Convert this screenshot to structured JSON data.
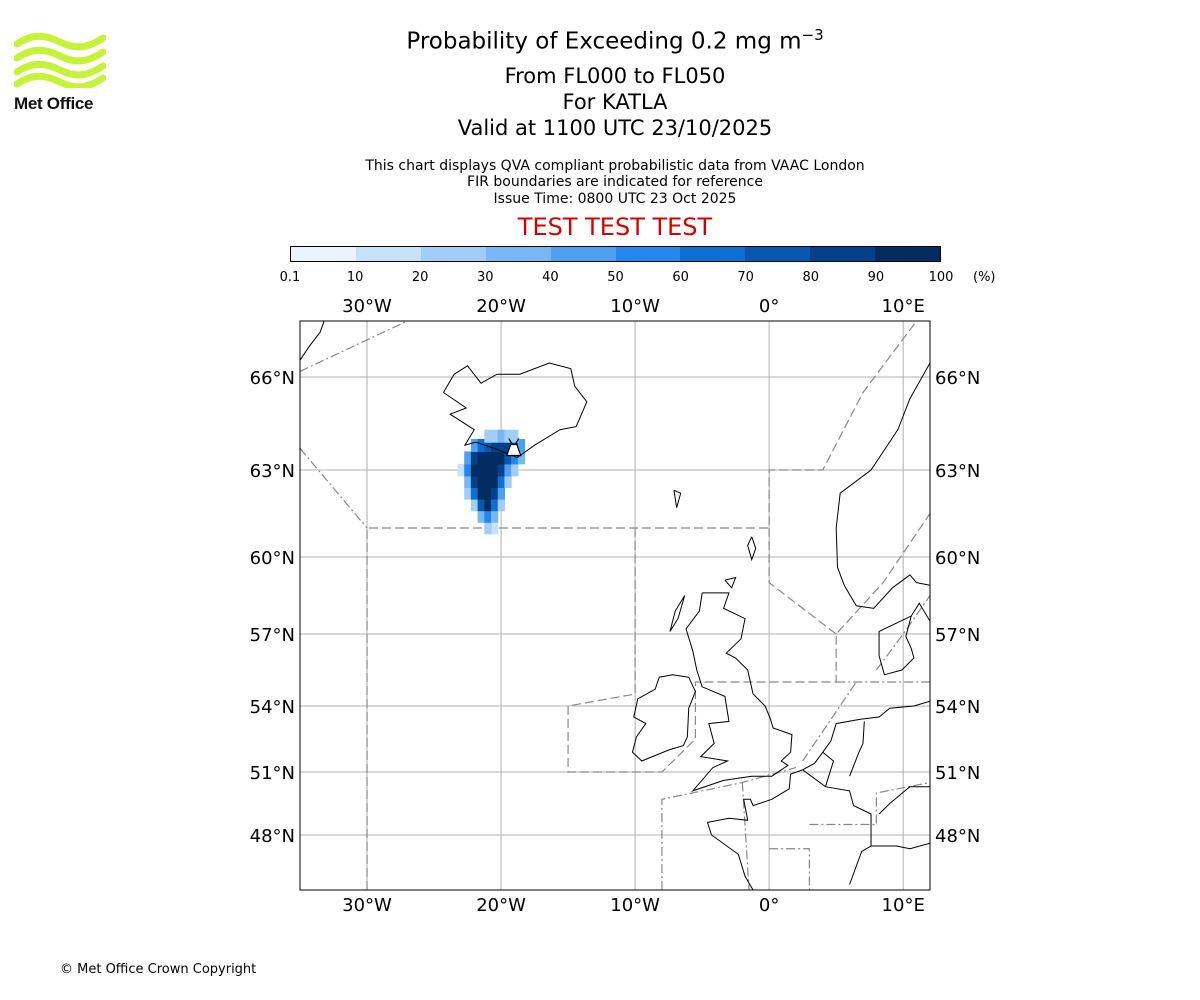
{
  "logo": {
    "name": "Met Office",
    "icon": "met-office-waves-logo",
    "accent_color": "#c6f23a"
  },
  "header": {
    "title_prefix": "Probability of Exceeding 0.2 mg m",
    "title_superscript": "−3",
    "levels": "From FL000 to FL050",
    "volcano": "For KATLA",
    "valid_time": "Valid at 1100 UTC 23/10/2025",
    "description": "This chart displays QVA compliant probabilistic data from VAAC London",
    "fir_note": "FIR boundaries are indicated for reference",
    "issue_time": "Issue Time: 0800 UTC 23 Oct 2025",
    "test_banner": "TEST TEST TEST"
  },
  "colorbar": {
    "ticks": [
      "0.1",
      "10",
      "20",
      "30",
      "40",
      "50",
      "60",
      "70",
      "80",
      "90",
      "100"
    ],
    "unit": "(%)",
    "colors": [
      "#eaf3fe",
      "#c9e2fb",
      "#a2cdf8",
      "#78b7f5",
      "#4ea0f2",
      "#2288ee",
      "#0b6fd4",
      "#0858b0",
      "#05418a",
      "#032c63"
    ]
  },
  "chart_data": {
    "type": "heatmap",
    "title": "Probability of Exceeding 0.2 mg m−3",
    "projection": "plate-carree",
    "xlim": [
      -35,
      12
    ],
    "ylim": [
      46,
      68
    ],
    "x_ticks": [
      -30,
      -20,
      -10,
      0,
      10
    ],
    "x_tick_labels": [
      "30°W",
      "20°W",
      "10°W",
      "0°",
      "10°E"
    ],
    "y_ticks": [
      48,
      51,
      54,
      57,
      60,
      63,
      66
    ],
    "y_tick_labels": [
      "48°N",
      "51°N",
      "54°N",
      "57°N",
      "60°N",
      "63°N",
      "66°N"
    ],
    "grid": true,
    "volcano": {
      "name": "KATLA",
      "lon": -19.05,
      "lat": 63.63
    },
    "probability_cells": [
      {
        "lon": -20.5,
        "lat": 61.0,
        "pct": 15
      },
      {
        "lon": -21.0,
        "lat": 61.0,
        "pct": 25
      },
      {
        "lon": -21.5,
        "lat": 61.4,
        "pct": 30
      },
      {
        "lon": -21.0,
        "lat": 61.4,
        "pct": 55
      },
      {
        "lon": -20.5,
        "lat": 61.4,
        "pct": 35
      },
      {
        "lon": -22.0,
        "lat": 61.8,
        "pct": 25
      },
      {
        "lon": -21.5,
        "lat": 61.8,
        "pct": 75
      },
      {
        "lon": -21.0,
        "lat": 61.8,
        "pct": 92
      },
      {
        "lon": -20.5,
        "lat": 61.8,
        "pct": 60
      },
      {
        "lon": -20.0,
        "lat": 61.8,
        "pct": 20
      },
      {
        "lon": -22.5,
        "lat": 62.2,
        "pct": 20
      },
      {
        "lon": -22.0,
        "lat": 62.2,
        "pct": 65
      },
      {
        "lon": -21.5,
        "lat": 62.2,
        "pct": 95
      },
      {
        "lon": -21.0,
        "lat": 62.2,
        "pct": 98
      },
      {
        "lon": -20.5,
        "lat": 62.2,
        "pct": 88
      },
      {
        "lon": -20.0,
        "lat": 62.2,
        "pct": 45
      },
      {
        "lon": -22.5,
        "lat": 62.6,
        "pct": 35
      },
      {
        "lon": -22.0,
        "lat": 62.6,
        "pct": 88
      },
      {
        "lon": -21.5,
        "lat": 62.6,
        "pct": 98
      },
      {
        "lon": -21.0,
        "lat": 62.6,
        "pct": 98
      },
      {
        "lon": -20.5,
        "lat": 62.6,
        "pct": 96
      },
      {
        "lon": -20.0,
        "lat": 62.6,
        "pct": 65
      },
      {
        "lon": -19.5,
        "lat": 62.6,
        "pct": 25
      },
      {
        "lon": -23.0,
        "lat": 63.0,
        "pct": 12
      },
      {
        "lon": -22.5,
        "lat": 63.0,
        "pct": 50
      },
      {
        "lon": -22.0,
        "lat": 63.0,
        "pct": 92
      },
      {
        "lon": -21.5,
        "lat": 63.0,
        "pct": 98
      },
      {
        "lon": -21.0,
        "lat": 63.0,
        "pct": 98
      },
      {
        "lon": -20.5,
        "lat": 63.0,
        "pct": 97
      },
      {
        "lon": -20.0,
        "lat": 63.0,
        "pct": 80
      },
      {
        "lon": -19.5,
        "lat": 63.0,
        "pct": 45
      },
      {
        "lon": -19.0,
        "lat": 63.0,
        "pct": 20
      },
      {
        "lon": -22.5,
        "lat": 63.4,
        "pct": 45
      },
      {
        "lon": -22.0,
        "lat": 63.4,
        "pct": 85
      },
      {
        "lon": -21.5,
        "lat": 63.4,
        "pct": 96
      },
      {
        "lon": -21.0,
        "lat": 63.4,
        "pct": 98
      },
      {
        "lon": -20.5,
        "lat": 63.4,
        "pct": 97
      },
      {
        "lon": -20.0,
        "lat": 63.4,
        "pct": 92
      },
      {
        "lon": -19.5,
        "lat": 63.4,
        "pct": 75
      },
      {
        "lon": -19.0,
        "lat": 63.4,
        "pct": 55
      },
      {
        "lon": -18.5,
        "lat": 63.4,
        "pct": 30
      },
      {
        "lon": -22.0,
        "lat": 63.8,
        "pct": 40
      },
      {
        "lon": -21.5,
        "lat": 63.8,
        "pct": 65
      },
      {
        "lon": -21.0,
        "lat": 63.8,
        "pct": 75
      },
      {
        "lon": -20.5,
        "lat": 63.8,
        "pct": 82
      },
      {
        "lon": -20.0,
        "lat": 63.8,
        "pct": 88
      },
      {
        "lon": -19.5,
        "lat": 63.8,
        "pct": 85
      },
      {
        "lon": -19.0,
        "lat": 63.8,
        "pct": 70
      },
      {
        "lon": -18.5,
        "lat": 63.8,
        "pct": 40
      },
      {
        "lon": -21.0,
        "lat": 64.1,
        "pct": 20
      },
      {
        "lon": -20.5,
        "lat": 64.1,
        "pct": 25
      },
      {
        "lon": -20.0,
        "lat": 64.1,
        "pct": 30
      },
      {
        "lon": -19.5,
        "lat": 64.1,
        "pct": 28
      },
      {
        "lon": -19.0,
        "lat": 64.1,
        "pct": 22
      }
    ]
  },
  "footer": {
    "copyright": "© Met Office Crown Copyright"
  }
}
